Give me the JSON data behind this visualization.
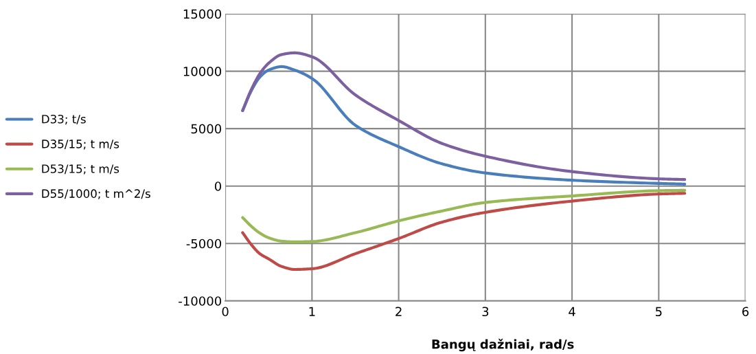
{
  "chart_data": {
    "type": "line",
    "xlabel": "Bangų dažniai, rad/s",
    "xlim": [
      0,
      6
    ],
    "xticks": [
      0,
      1,
      2,
      3,
      4,
      5,
      6
    ],
    "ylim": [
      -10000,
      15000
    ],
    "yticks": [
      -10000,
      -5000,
      0,
      5000,
      10000,
      15000
    ],
    "grid": true,
    "legend": "left",
    "marker": "none",
    "line_style": "solid",
    "x": [
      0.2,
      0.3,
      0.4,
      0.5,
      0.65,
      0.8,
      1,
      1.5,
      2,
      2.5,
      3,
      4,
      5,
      5.3
    ],
    "series": [
      {
        "name": "D33; t/s",
        "color": "#4a7ebb",
        "values": [
          6570,
          8300,
          9500,
          10100,
          10400,
          10100,
          9370,
          5300,
          3430,
          1940,
          1140,
          510,
          230,
          170
        ]
      },
      {
        "name": "D35/15; t m/s",
        "color": "#be4b48",
        "values": [
          -4060,
          -5100,
          -5900,
          -6340,
          -7000,
          -7260,
          -7200,
          -5890,
          -4570,
          -3140,
          -2290,
          -1310,
          -690,
          -630
        ]
      },
      {
        "name": "D53/15; t m/s",
        "color": "#98b954",
        "values": [
          -2740,
          -3500,
          -4100,
          -4500,
          -4800,
          -4860,
          -4830,
          -4060,
          -3030,
          -2170,
          -1430,
          -860,
          -400,
          -370
        ]
      },
      {
        "name": "D55/1000; t m^2/s",
        "color": "#7d60a0",
        "values": [
          6570,
          8400,
          9800,
          10700,
          11450,
          11600,
          11260,
          7940,
          5710,
          3710,
          2600,
          1260,
          630,
          570
        ]
      }
    ]
  }
}
